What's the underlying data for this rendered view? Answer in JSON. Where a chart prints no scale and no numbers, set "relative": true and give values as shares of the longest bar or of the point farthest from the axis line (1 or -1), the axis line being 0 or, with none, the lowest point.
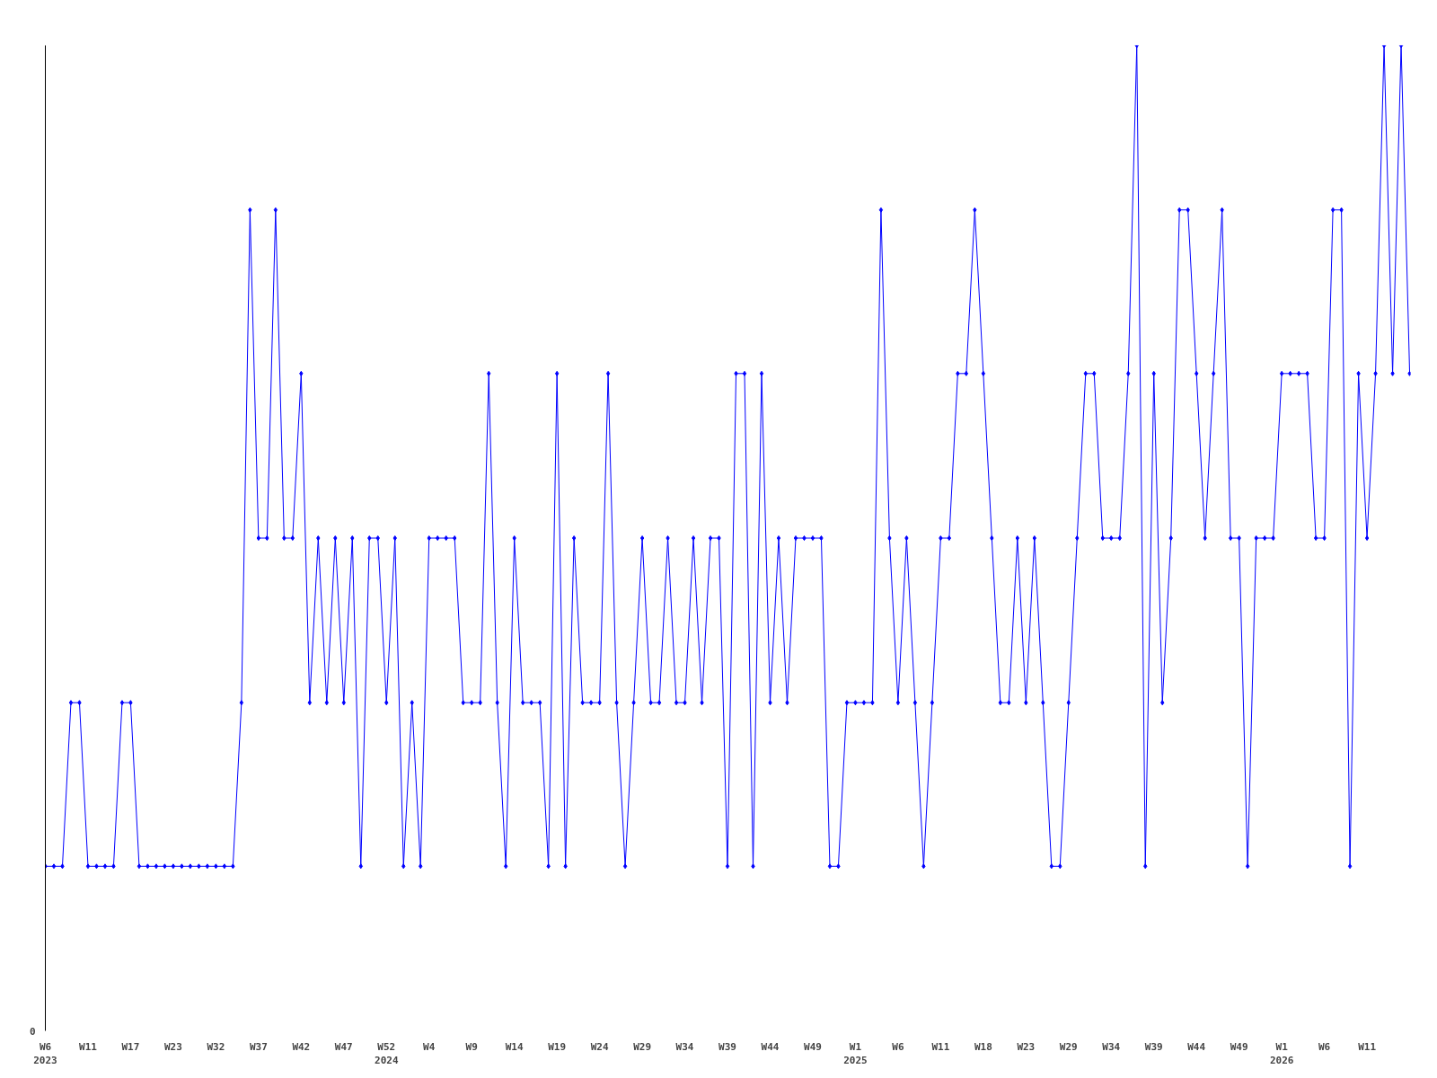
{
  "chart_data": {
    "type": "line",
    "relative": true,
    "marker": "diamond",
    "line_style": "solid",
    "grid": false,
    "annotations": [
      "0"
    ],
    "categories": [
      "W6\n2023",
      null,
      null,
      null,
      null,
      "W11",
      null,
      null,
      null,
      null,
      "W17",
      null,
      null,
      null,
      null,
      "W23",
      null,
      null,
      null,
      null,
      "W32",
      null,
      null,
      null,
      null,
      "W37",
      null,
      null,
      null,
      null,
      "W42",
      null,
      null,
      null,
      null,
      "W47",
      null,
      null,
      null,
      null,
      "W52\n2024",
      null,
      null,
      null,
      null,
      "W4",
      null,
      null,
      null,
      null,
      "W9",
      null,
      null,
      null,
      null,
      "W14",
      null,
      null,
      null,
      null,
      "W19",
      null,
      null,
      null,
      null,
      "W24",
      null,
      null,
      null,
      null,
      "W29",
      null,
      null,
      null,
      null,
      "W34",
      null,
      null,
      null,
      null,
      "W39",
      null,
      null,
      null,
      null,
      "W44",
      null,
      null,
      null,
      null,
      "W49",
      null,
      null,
      null,
      null,
      "W1\n2025",
      null,
      null,
      null,
      null,
      "W6",
      null,
      null,
      null,
      null,
      "W11",
      null,
      null,
      null,
      null,
      "W18",
      null,
      null,
      null,
      null,
      "W23",
      null,
      null,
      null,
      null,
      "W29",
      null,
      null,
      null,
      null,
      "W34",
      null,
      null,
      null,
      null,
      "W39",
      null,
      null,
      null,
      null,
      "W44",
      null,
      null,
      null,
      null,
      "W49",
      null,
      null,
      null,
      null,
      "W1\n2026",
      null,
      null,
      null,
      null,
      "W6",
      null,
      null,
      null,
      null,
      "W11",
      null,
      null,
      null,
      null,
      null
    ],
    "series": [
      {
        "color": "#0000ff",
        "values": [
          0.167,
          0.167,
          0.167,
          0.333,
          0.333,
          0.167,
          0.167,
          0.167,
          0.167,
          0.333,
          0.333,
          0.167,
          0.167,
          0.167,
          0.167,
          0.167,
          0.167,
          0.167,
          0.167,
          0.167,
          0.167,
          0.167,
          0.167,
          0.333,
          0.833,
          0.5,
          0.5,
          0.833,
          0.5,
          0.5,
          0.667,
          0.333,
          0.5,
          0.333,
          0.5,
          0.333,
          0.5,
          0.167,
          0.5,
          0.5,
          0.333,
          0.5,
          0.167,
          0.333,
          0.167,
          0.5,
          0.5,
          0.5,
          0.5,
          0.333,
          0.333,
          0.333,
          0.667,
          0.333,
          0.167,
          0.5,
          0.333,
          0.333,
          0.333,
          0.167,
          0.667,
          0.167,
          0.5,
          0.333,
          0.333,
          0.333,
          0.667,
          0.333,
          0.167,
          0.333,
          0.5,
          0.333,
          0.333,
          0.5,
          0.333,
          0.333,
          0.5,
          0.333,
          0.5,
          0.5,
          0.167,
          0.667,
          0.667,
          0.167,
          0.667,
          0.333,
          0.5,
          0.333,
          0.5,
          0.5,
          0.5,
          0.5,
          0.167,
          0.167,
          0.333,
          0.333,
          0.333,
          0.333,
          0.833,
          0.5,
          0.333,
          0.5,
          0.333,
          0.167,
          0.333,
          0.5,
          0.5,
          0.667,
          0.667,
          0.833,
          0.667,
          0.5,
          0.333,
          0.333,
          0.5,
          0.333,
          0.5,
          0.333,
          0.167,
          0.167,
          0.333,
          0.5,
          0.667,
          0.667,
          0.5,
          0.5,
          0.5,
          0.667,
          1,
          0.167,
          0.667,
          0.333,
          0.5,
          0.833,
          0.833,
          0.667,
          0.5,
          0.667,
          0.833,
          0.5,
          0.5,
          0.167,
          0.5,
          0.5,
          0.5,
          0.667,
          0.667,
          0.667,
          0.667,
          0.5,
          0.5,
          0.833,
          0.833,
          0.167,
          0.667,
          0.5,
          0.667,
          1,
          0.667,
          1,
          0.667
        ]
      }
    ]
  }
}
